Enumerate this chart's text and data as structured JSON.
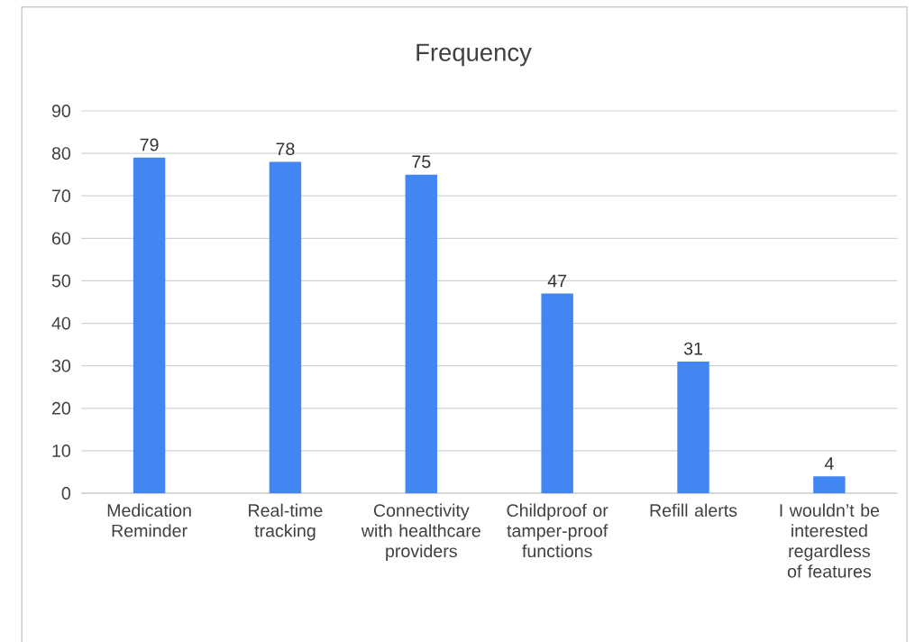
{
  "chart_data": {
    "type": "bar",
    "title": "Frequency",
    "categories": [
      "Medication Reminder",
      "Real-time tracking",
      "Connectivity with healthcare providers",
      "Childproof or tamper-proof functions",
      "Refill alerts",
      "I wouldn’t be interested regardless of features"
    ],
    "values": [
      79,
      78,
      75,
      47,
      31,
      4
    ],
    "color": "#4286f4",
    "ylim": [
      0,
      90
    ],
    "yticks": [
      0,
      10,
      20,
      30,
      40,
      50,
      60,
      70,
      80,
      90
    ],
    "grid": "y",
    "data_labels": true
  }
}
